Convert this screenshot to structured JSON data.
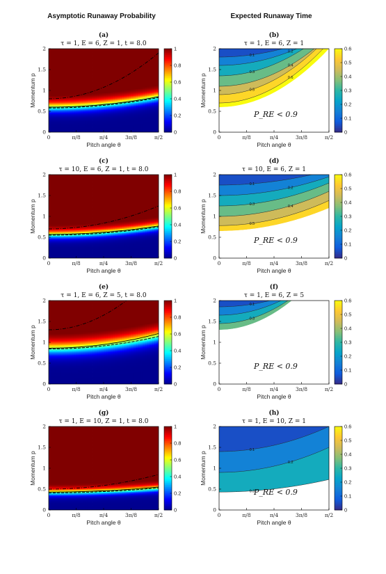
{
  "column_titles": [
    "Asymptotic Runaway Probability",
    "Expected Runaway Time"
  ],
  "colors": {
    "jet": [
      "#00008f",
      "#0000ff",
      "#0080ff",
      "#00ffff",
      "#80ff80",
      "#ffff00",
      "#ff8000",
      "#ff0000",
      "#800000"
    ],
    "parula": [
      "#352a87",
      "#0f5cdd",
      "#1481d6",
      "#06a4ca",
      "#2eb7a4",
      "#87bf77",
      "#d1bb59",
      "#fec832",
      "#f9fb0e"
    ]
  },
  "chart_data": [
    {
      "id": "a",
      "type": "heatmap",
      "tag": "(a)",
      "title": "τ = 1,  E = 6,  Z = 1,  t = 8.0",
      "xlabel": "Pitch angle θ",
      "ylabel": "Momentum p",
      "xticks": [
        "0",
        "π/8",
        "π/4",
        "3π/8",
        "π/2"
      ],
      "xlim": [
        0,
        1.5708
      ],
      "yticks": [
        "0",
        "0.5",
        "1",
        "1.5",
        "2"
      ],
      "ylim": [
        0,
        2
      ],
      "colorbar": {
        "colormap": "jet",
        "ticks": [
          "0",
          "0.2",
          "0.4",
          "0.6",
          "0.8",
          "1"
        ],
        "range": [
          0,
          1
        ]
      },
      "model": {
        "p0": 0.6,
        "a": 0.25,
        "w": 0.075
      },
      "lines": [
        {
          "style": "solid",
          "p0": 0.6,
          "a": 0.25
        },
        {
          "style": "dashed",
          "p0": 0.58,
          "a": 0.25
        },
        {
          "style": "dashdot",
          "p0": 0.8,
          "a": 1.1
        }
      ]
    },
    {
      "id": "b",
      "type": "contour",
      "tag": "(b)",
      "title": "τ = 1,  E = 6,  Z = 1",
      "xlabel": "Pitch angle θ",
      "ylabel": "Momentum p",
      "xticks": [
        "0",
        "π/8",
        "π/4",
        "3π/8",
        "π/2"
      ],
      "xlim": [
        0,
        1.5708
      ],
      "yticks": [
        "0",
        "0.5",
        "1",
        "1.5",
        "2"
      ],
      "ylim": [
        0,
        2
      ],
      "colorbar": {
        "colormap": "parula",
        "ticks": [
          "0",
          "0.1",
          "0.2",
          "0.3",
          "0.4",
          "0.5",
          "0.6"
        ],
        "range": [
          0,
          0.6
        ]
      },
      "annotation": "P_RE < 0.9",
      "boundary": {
        "p0": 0.6,
        "a": 1.4
      },
      "levels": [
        {
          "label": "0.1",
          "p0": 1.8,
          "a": 0.6
        },
        {
          "label": "0.2",
          "p0": 1.6,
          "a": 0.8
        },
        {
          "label": "0.3",
          "p0": 1.35,
          "a": 1.1
        },
        {
          "label": "0.4",
          "p0": 1.1,
          "a": 1.2
        },
        {
          "label": "0.5",
          "p0": 0.9,
          "a": 1.4
        },
        {
          "label": "0.6",
          "p0": 0.7,
          "a": 1.45
        }
      ]
    },
    {
      "id": "c",
      "type": "heatmap",
      "tag": "(c)",
      "title": "τ = 10,  E = 6,  Z = 1,  t = 8.0",
      "xlabel": "Pitch angle θ",
      "ylabel": "Momentum p",
      "xticks": [
        "0",
        "π/8",
        "π/4",
        "3π/8",
        "π/2"
      ],
      "xlim": [
        0,
        1.5708
      ],
      "yticks": [
        "0",
        "0.5",
        "1",
        "1.5",
        "2"
      ],
      "ylim": [
        0,
        2
      ],
      "colorbar": {
        "colormap": "jet",
        "ticks": [
          "0",
          "0.2",
          "0.4",
          "0.6",
          "0.8",
          "1"
        ],
        "range": [
          0,
          1
        ]
      },
      "model": {
        "p0": 0.56,
        "a": 0.2,
        "w": 0.06
      },
      "lines": [
        {
          "style": "solid",
          "p0": 0.57,
          "a": 0.2
        },
        {
          "style": "dashed",
          "p0": 0.55,
          "a": 0.2
        },
        {
          "style": "dashdot",
          "p0": 0.7,
          "a": 0.55
        }
      ]
    },
    {
      "id": "d",
      "type": "contour",
      "tag": "(d)",
      "title": "τ = 10,  E = 6,  Z = 1",
      "xlabel": "Pitch angle θ",
      "ylabel": "Momentum p",
      "xticks": [
        "0",
        "π/8",
        "π/4",
        "3π/8",
        "π/2"
      ],
      "xlim": [
        0,
        1.5708
      ],
      "yticks": [
        "0",
        "0.5",
        "1",
        "1.5",
        "2"
      ],
      "ylim": [
        0,
        2
      ],
      "colorbar": {
        "colormap": "parula",
        "ticks": [
          "0",
          "0.1",
          "0.2",
          "0.3",
          "0.4",
          "0.5",
          "0.6"
        ],
        "range": [
          0,
          0.6
        ]
      },
      "annotation": "P_RE < 0.9",
      "boundary": {
        "p0": 0.65,
        "a": 0.55
      },
      "levels": [
        {
          "label": "0.1",
          "p0": 1.75,
          "a": 0.35
        },
        {
          "label": "0.2",
          "p0": 1.5,
          "a": 0.45
        },
        {
          "label": "0.3",
          "p0": 1.25,
          "a": 0.55
        },
        {
          "label": "0.4",
          "p0": 1.0,
          "a": 0.6
        },
        {
          "label": "0.5",
          "p0": 0.78,
          "a": 0.6
        }
      ]
    },
    {
      "id": "e",
      "type": "heatmap",
      "tag": "(e)",
      "title": "τ = 1,  E = 6,  Z = 5,  t = 8.0",
      "xlabel": "Pitch angle θ",
      "ylabel": "Momentum p",
      "xticks": [
        "0",
        "π/8",
        "π/4",
        "3π/8",
        "π/2"
      ],
      "xlim": [
        0,
        1.5708
      ],
      "yticks": [
        "0",
        "0.5",
        "1",
        "1.5",
        "2"
      ],
      "ylim": [
        0,
        2
      ],
      "colorbar": {
        "colormap": "jet",
        "ticks": [
          "0",
          "0.2",
          "0.4",
          "0.6",
          "0.8",
          "1"
        ],
        "range": [
          0,
          1
        ]
      },
      "model": {
        "p0": 0.85,
        "a": 0.3,
        "w": 0.1
      },
      "lines": [
        {
          "style": "solid",
          "p0": 0.86,
          "a": 0.35
        },
        {
          "style": "dashed",
          "p0": 0.84,
          "a": 0.3
        },
        {
          "style": "dashdot",
          "p0": 1.3,
          "a": 1.4
        }
      ]
    },
    {
      "id": "f",
      "type": "contour",
      "tag": "(f)",
      "title": "τ = 1,  E = 6,  Z = 5",
      "xlabel": "Pitch angle θ",
      "ylabel": "Momentum p",
      "xticks": [
        "0",
        "π/8",
        "π/4",
        "3π/8",
        "π/2"
      ],
      "xlim": [
        0,
        1.5708
      ],
      "yticks": [
        "0",
        "0.5",
        "1",
        "1.5",
        "2"
      ],
      "ylim": [
        0,
        2
      ],
      "colorbar": {
        "colormap": "parula",
        "ticks": [
          "0",
          "0.1",
          "0.2",
          "0.3",
          "0.4",
          "0.5",
          "0.6"
        ],
        "range": [
          0,
          0.6
        ]
      },
      "annotation": "P_RE < 0.9",
      "boundary": {
        "p0": 1.3,
        "a": 1.6
      },
      "levels": [
        {
          "label": "0.1",
          "p0": 1.85,
          "a": 0.7
        },
        {
          "label": "0.2",
          "p0": 1.65,
          "a": 1.1
        },
        {
          "label": "0.3",
          "p0": 1.45,
          "a": 1.4
        }
      ]
    },
    {
      "id": "g",
      "type": "heatmap",
      "tag": "(g)",
      "title": "τ = 1,  E = 10,  Z = 1,  t = 8.0",
      "xlabel": "Pitch angle θ",
      "ylabel": "Momentum p",
      "xticks": [
        "0",
        "π/8",
        "π/4",
        "3π/8",
        "π/2"
      ],
      "xlim": [
        0,
        1.5708
      ],
      "yticks": [
        "0",
        "0.5",
        "1",
        "1.5",
        "2"
      ],
      "ylim": [
        0,
        2
      ],
      "colorbar": {
        "colormap": "jet",
        "ticks": [
          "0",
          "0.2",
          "0.4",
          "0.6",
          "0.8",
          "1"
        ],
        "range": [
          0,
          1
        ]
      },
      "model": {
        "p0": 0.42,
        "a": 0.1,
        "w": 0.05
      },
      "lines": [
        {
          "style": "solid",
          "p0": 0.43,
          "a": 0.12
        },
        {
          "style": "dashed",
          "p0": 0.41,
          "a": 0.12
        },
        {
          "style": "dashdot",
          "p0": 0.5,
          "a": 0.35
        }
      ]
    },
    {
      "id": "h",
      "type": "contour",
      "tag": "(h)",
      "title": "τ = 1,  E = 10,  Z = 1",
      "xlabel": "Pitch angle θ",
      "ylabel": "Momentum p",
      "xticks": [
        "0",
        "π/8",
        "π/4",
        "3π/8",
        "π/2"
      ],
      "xlim": [
        0,
        1.5708
      ],
      "yticks": [
        "0",
        "0.5",
        "1",
        "1.5",
        "2"
      ],
      "ylim": [
        0,
        2
      ],
      "colorbar": {
        "colormap": "parula",
        "ticks": [
          "0",
          "0.1",
          "0.2",
          "0.3",
          "0.4",
          "0.5",
          "0.6"
        ],
        "range": [
          0,
          0.6
        ]
      },
      "annotation": "P_RE < 0.9",
      "boundary": {
        "p0": 0.43,
        "a": 0.3
      },
      "levels": [
        {
          "label": "0.1",
          "p0": 1.4,
          "a": 0.6
        },
        {
          "label": "0.2",
          "p0": 0.9,
          "a": 0.6
        },
        {
          "label": "0.3",
          "p0": 0.43,
          "a": 0.3
        }
      ]
    }
  ]
}
